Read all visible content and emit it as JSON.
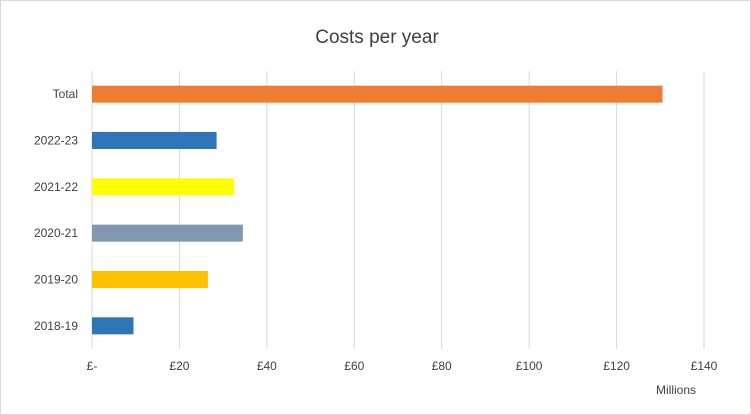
{
  "chart_data": {
    "type": "bar",
    "orientation": "horizontal",
    "title": "Costs per year",
    "categories": [
      "Total",
      "2022-23",
      "2021-22",
      "2020-21",
      "2019-20",
      "2018-19"
    ],
    "values": [
      130.5,
      28.5,
      32.5,
      34.5,
      26.5,
      9.5
    ],
    "bar_colors": [
      "#ED7D31",
      "#2E75B6",
      "#FFFF00",
      "#8497B0",
      "#FFC000",
      "#2E75B6"
    ],
    "x_ticks": [
      "£-",
      "£20",
      "£40",
      "£60",
      "£80",
      "£100",
      "£120",
      "£140"
    ],
    "xlim": [
      0,
      140
    ],
    "x_unit_label": "Millions",
    "xlabel": "",
    "ylabel": "",
    "grid": true,
    "legend": "none"
  }
}
